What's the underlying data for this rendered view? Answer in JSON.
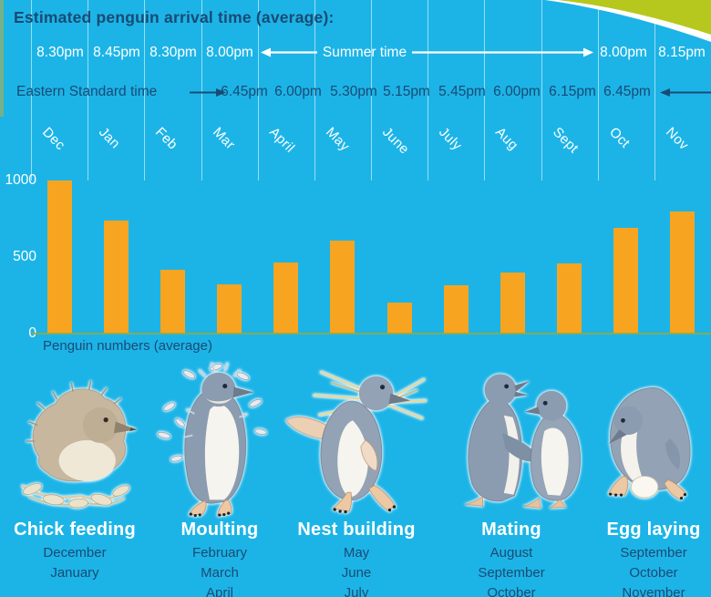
{
  "title": "Estimated penguin arrival time (average):",
  "timeline": {
    "summer": {
      "left_times": [
        "8.30pm",
        "8.45pm",
        "8.30pm",
        "8.00pm"
      ],
      "label": "Summer time",
      "right_times": [
        "8.00pm",
        "8.15pm"
      ]
    },
    "eastern": {
      "label": "Eastern Standard time",
      "times": [
        "6.45pm",
        "6.00pm",
        "5.30pm",
        "5.15pm",
        "5.45pm",
        "6.00pm",
        "6.15pm",
        "6.45pm"
      ]
    }
  },
  "chart_data": {
    "type": "bar",
    "title": "Estimated penguin arrival time (average):",
    "categories": [
      "Dec",
      "Jan",
      "Feb",
      "Mar",
      "April",
      "May",
      "June",
      "July",
      "Aug",
      "Sept",
      "Oct",
      "Nov"
    ],
    "values": [
      1000,
      740,
      415,
      320,
      465,
      610,
      200,
      315,
      400,
      460,
      690,
      800
    ],
    "yticks": [
      1000,
      500,
      0
    ],
    "ylim": [
      0,
      1050
    ],
    "xlabel": "Penguin numbers (average)",
    "legend": "none",
    "grid": "vertical"
  },
  "stages": [
    {
      "name": "Chick feeding",
      "months": [
        "December",
        "January"
      ]
    },
    {
      "name": "Moulting",
      "months": [
        "February",
        "March",
        "April"
      ]
    },
    {
      "name": "Nest building",
      "months": [
        "May",
        "June",
        "July"
      ]
    },
    {
      "name": "Mating",
      "months": [
        "August",
        "September",
        "October"
      ]
    },
    {
      "name": "Egg laying",
      "months": [
        "September",
        "October",
        "November"
      ]
    }
  ],
  "colors": {
    "background": "#1cb4e7",
    "accent_orange": "#f7a521",
    "text_dark": "#1a4a74",
    "text_light": "#ffffff",
    "band_green": "#b6c81d",
    "baseline_olive": "#97a93f"
  }
}
